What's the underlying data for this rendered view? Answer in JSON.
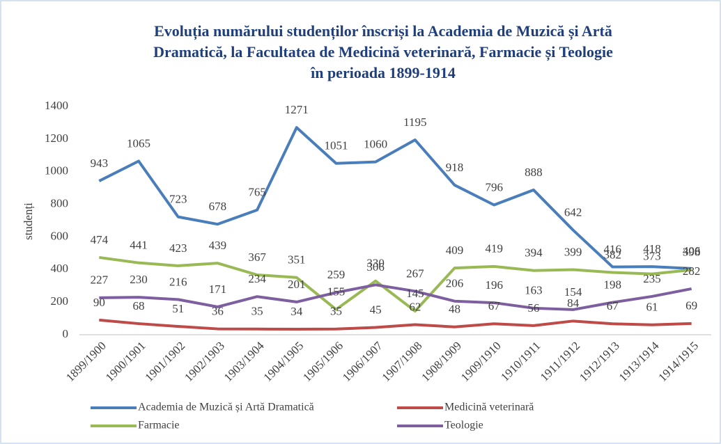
{
  "chart_data": {
    "type": "line",
    "title": [
      "Evoluția numărului studenților înscriși la Academia de Muzică și Artă",
      "Dramatică, la Facultatea de Medicină veterinară, Farmacie și Teologie",
      "în perioada 1899-1914"
    ],
    "y_label": "studenți",
    "categories": [
      "1899/1900",
      "1900/1901",
      "1901/1902",
      "1902/1903",
      "1903/1904",
      "1904/1905",
      "1905/1906",
      "1906/1907",
      "1907/1908",
      "1908/1909",
      "1909/1910",
      "1910/1911",
      "1911/1912",
      "1912/1913",
      "1913/1914",
      "1914/1915"
    ],
    "series": [
      {
        "name": "Academia de Muzică și Artă Dramatică",
        "color": "#4a7ebb",
        "values": [
          943,
          1065,
          723,
          678,
          765,
          1271,
          1051,
          1060,
          1195,
          918,
          796,
          888,
          642,
          416,
          418,
          406
        ]
      },
      {
        "name": "Medicină veterinară",
        "color": "#be4b48",
        "values": [
          90,
          68,
          51,
          36,
          35,
          34,
          35,
          45,
          62,
          48,
          67,
          56,
          84,
          67,
          61,
          69
        ]
      },
      {
        "name": "Farmacie",
        "color": "#98b954",
        "values": [
          474,
          441,
          423,
          439,
          367,
          351,
          155,
          330,
          145,
          409,
          419,
          394,
          399,
          382,
          373,
          398
        ]
      },
      {
        "name": "Teologie",
        "color": "#7d5fa0",
        "values": [
          227,
          230,
          216,
          171,
          234,
          201,
          259,
          306,
          267,
          206,
          196,
          163,
          154,
          198,
          235,
          282
        ]
      }
    ],
    "ylim": [
      0,
      1400
    ],
    "yticks": [
      0,
      200,
      400,
      600,
      800,
      1000,
      1200,
      1400
    ],
    "grid": false
  }
}
